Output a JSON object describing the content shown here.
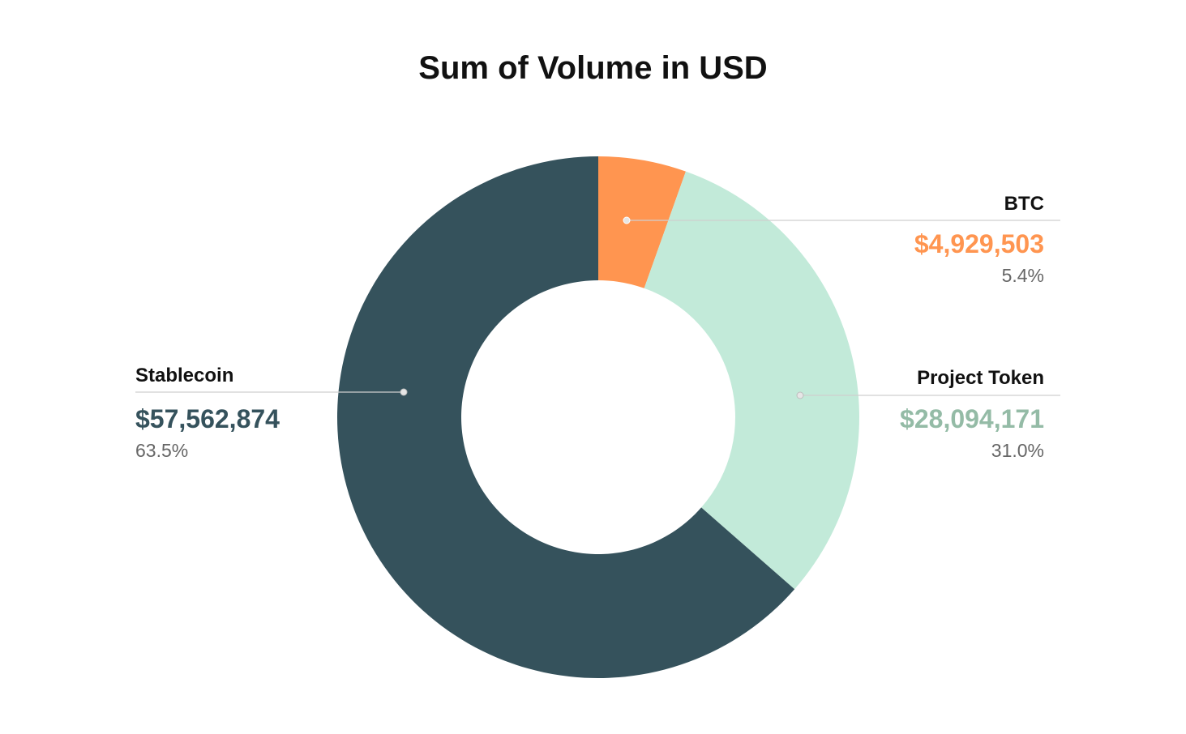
{
  "chart_data": {
    "type": "pie",
    "donut": true,
    "title": "Sum of Volume in USD",
    "slices": [
      {
        "label": "BTC",
        "value": 4929503,
        "value_label": "$4,929,503",
        "percent_label": "5.4%",
        "color": "#FF9550",
        "value_color": "#FF9550"
      },
      {
        "label": "Project Token",
        "value": 28094171,
        "value_label": "$28,094,171",
        "percent_label": "31.0%",
        "color": "#C2EAD9",
        "value_color": "#94BBA6"
      },
      {
        "label": "Stablecoin",
        "value": 57562874,
        "value_label": "$57,562,874",
        "percent_label": "63.5%",
        "color": "#35525C",
        "value_color": "#35525C"
      }
    ],
    "legend": "none",
    "start_angle": "top",
    "direction": "clockwise"
  }
}
